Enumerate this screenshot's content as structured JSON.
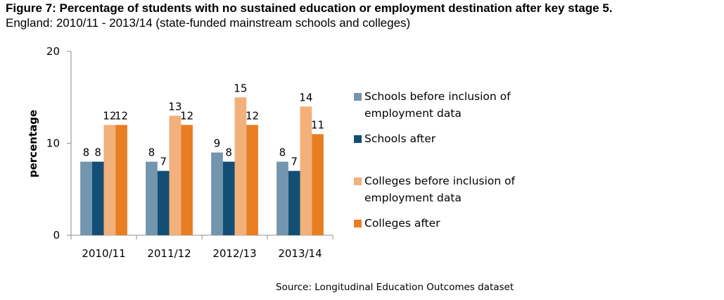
{
  "chart_data": {
    "type": "bar",
    "title": "Figure 7: Percentage of students with no sustained education or employment destination after key stage 5.",
    "subtitle": "England: 2010/11 -  2013/14 (state-funded mainstream schools and colleges)",
    "xlabel": "",
    "ylabel": "percentage",
    "ylim": [
      0,
      20
    ],
    "yticks": [
      "0",
      "10",
      "20"
    ],
    "categories": [
      "2010/11",
      "2011/12",
      "2012/13",
      "2013/14"
    ],
    "series": [
      {
        "name": "Schools before inclusion of employment data",
        "legend_lines": [
          "Schools before inclusion of",
          "employment data"
        ],
        "color": "#7395ae",
        "values": [
          8,
          8,
          9,
          8
        ]
      },
      {
        "name": "Schools after",
        "legend_lines": [
          "Schools after"
        ],
        "color": "#134f74",
        "values": [
          8,
          7,
          8,
          7
        ]
      },
      {
        "name": "Colleges before inclusion of employment data",
        "legend_lines": [
          "Colleges before inclusion of",
          "employment data"
        ],
        "color": "#f2b07a",
        "values": [
          12,
          13,
          15,
          14
        ]
      },
      {
        "name": "Colleges after",
        "legend_lines": [
          "Colleges after"
        ],
        "color": "#e87e22",
        "values": [
          12,
          12,
          12,
          11
        ]
      }
    ],
    "legend_position": "right",
    "grid": false,
    "source": "Source: Longitudinal Education Outcomes dataset"
  }
}
